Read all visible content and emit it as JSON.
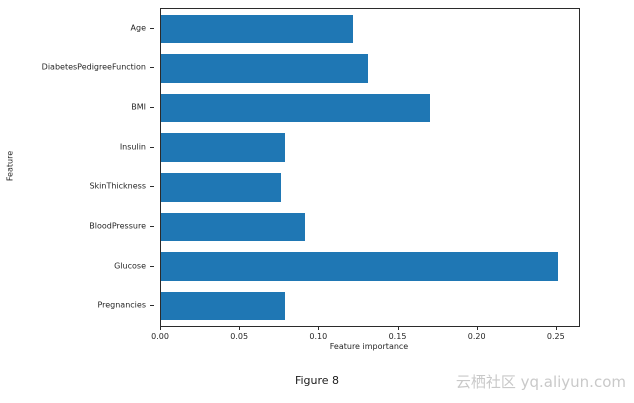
{
  "chart_data": {
    "type": "bar",
    "orientation": "horizontal",
    "title": "",
    "xlabel": "Feature importance",
    "ylabel": "Feature",
    "categories": [
      "Age",
      "DiabetesPedigreeFunction",
      "BMI",
      "Insulin",
      "SkinThickness",
      "BloodPressure",
      "Glucose",
      "Pregnancies"
    ],
    "values": [
      0.121,
      0.131,
      0.17,
      0.078,
      0.076,
      0.091,
      0.251,
      0.078
    ],
    "xlim": [
      0.0,
      0.264
    ],
    "xticks": [
      0.0,
      0.05,
      0.1,
      0.15,
      0.2,
      0.25
    ],
    "xtick_labels": [
      "0.00",
      "0.05",
      "0.10",
      "0.15",
      "0.20",
      "0.25"
    ],
    "bar_color": "#1f77b4",
    "grid": false,
    "legend": "none"
  },
  "caption": "Figure 8",
  "watermark": "云栖社区 yq.aliyun.com"
}
